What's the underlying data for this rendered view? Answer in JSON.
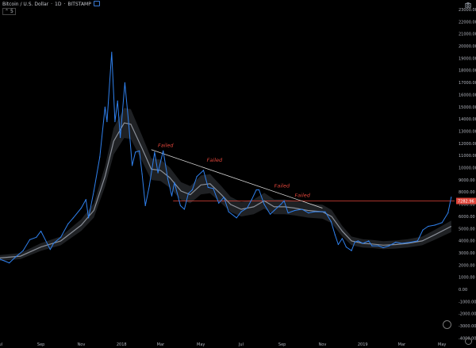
{
  "header": {
    "symbol": "Bitcoin / U.S. Dollar",
    "interval": "1D",
    "exchange": "BITSTAMP",
    "toggle_label": "5"
  },
  "price_marker": {
    "label": "7282.96",
    "value": 7282.96
  },
  "annotations": [
    {
      "text": "Failed",
      "x": "2018-02-25",
      "y": 11700
    },
    {
      "text": "Failed",
      "x": "2018-05-10",
      "y": 10500
    },
    {
      "text": "Failed",
      "x": "2018-08-20",
      "y": 8400
    },
    {
      "text": "Failed",
      "x": "2018-09-20",
      "y": 7600
    }
  ],
  "colors": {
    "price": "#2f80ed",
    "ma": "#8a8f98",
    "band": "#5a5e66",
    "trendline": "#d8d8d8",
    "hline": "#e0453a",
    "annotation": "#e0453a",
    "marker_bg": "#e0453a",
    "axis_text": "#b2b5be"
  },
  "chart_data": {
    "type": "line",
    "x_axis_type": "date",
    "xlim": [
      "2017-07-01",
      "2019-05-20"
    ],
    "ylim": [
      -4800,
      23800
    ],
    "x_ticks": [
      {
        "label": "Jul",
        "date": "2017-07-01"
      },
      {
        "label": "Sep",
        "date": "2017-09-01"
      },
      {
        "label": "Nov",
        "date": "2017-11-01"
      },
      {
        "label": "2018",
        "date": "2018-01-01"
      },
      {
        "label": "Mar",
        "date": "2018-03-01"
      },
      {
        "label": "May",
        "date": "2018-05-01"
      },
      {
        "label": "Jul",
        "date": "2018-07-01"
      },
      {
        "label": "Sep",
        "date": "2018-09-01"
      },
      {
        "label": "Nov",
        "date": "2018-11-01"
      },
      {
        "label": "2019",
        "date": "2019-01-01"
      },
      {
        "label": "Mar",
        "date": "2019-03-01"
      },
      {
        "label": "May",
        "date": "2019-05-01"
      }
    ],
    "y_ticks": [
      23000,
      22000,
      21000,
      20000,
      19000,
      18000,
      17000,
      16000,
      15000,
      14000,
      13000,
      12000,
      11000,
      10000,
      9000,
      8000,
      7000,
      6000,
      5000,
      4000,
      3000,
      2000,
      1000,
      0,
      -1000,
      -2000,
      -3000,
      -4000
    ],
    "y_tick_labels": [
      "23000.00",
      "22000.00",
      "21000.00",
      "20000.00",
      "19000.00",
      "18000.00",
      "17000.00",
      "16000.00",
      "15000.00",
      "14000.00",
      "13000.00",
      "12000.00",
      "11000.00",
      "10000.00",
      "9000.00",
      "8000.00",
      "7000.00",
      "6000.00",
      "5000.00",
      "4000.00",
      "3000.00",
      "2000.00",
      "1000.00",
      "0.00",
      "-1000.00",
      "-2000.00",
      "-3000.00",
      "-4000.00"
    ],
    "series": [
      {
        "name": "",
        "role": "price",
        "points": [
          [
            "2017-07-01",
            2500
          ],
          [
            "2017-07-15",
            2200
          ],
          [
            "2017-07-25",
            2700
          ],
          [
            "2017-08-05",
            3200
          ],
          [
            "2017-08-15",
            4100
          ],
          [
            "2017-08-25",
            4300
          ],
          [
            "2017-09-01",
            4800
          ],
          [
            "2017-09-15",
            3300
          ],
          [
            "2017-09-20",
            3800
          ],
          [
            "2017-10-01",
            4300
          ],
          [
            "2017-10-12",
            5400
          ],
          [
            "2017-10-20",
            5900
          ],
          [
            "2017-11-01",
            6700
          ],
          [
            "2017-11-08",
            7400
          ],
          [
            "2017-11-12",
            5900
          ],
          [
            "2017-11-20",
            8100
          ],
          [
            "2017-11-29",
            10900
          ],
          [
            "2017-12-07",
            15000
          ],
          [
            "2017-12-10",
            13800
          ],
          [
            "2017-12-17",
            19500
          ],
          [
            "2017-12-22",
            13800
          ],
          [
            "2017-12-26",
            15500
          ],
          [
            "2017-12-30",
            12500
          ],
          [
            "2018-01-06",
            17000
          ],
          [
            "2018-01-12",
            13500
          ],
          [
            "2018-01-17",
            10200
          ],
          [
            "2018-01-22",
            11300
          ],
          [
            "2018-01-28",
            11400
          ],
          [
            "2018-02-01",
            9500
          ],
          [
            "2018-02-06",
            6900
          ],
          [
            "2018-02-12",
            8500
          ],
          [
            "2018-02-20",
            11300
          ],
          [
            "2018-02-25",
            9600
          ],
          [
            "2018-03-05",
            11400
          ],
          [
            "2018-03-12",
            9100
          ],
          [
            "2018-03-18",
            7700
          ],
          [
            "2018-03-22",
            8800
          ],
          [
            "2018-03-31",
            6900
          ],
          [
            "2018-04-06",
            6600
          ],
          [
            "2018-04-12",
            7900
          ],
          [
            "2018-04-18",
            8200
          ],
          [
            "2018-04-25",
            9300
          ],
          [
            "2018-05-05",
            9800
          ],
          [
            "2018-05-12",
            8400
          ],
          [
            "2018-05-20",
            8300
          ],
          [
            "2018-05-28",
            7100
          ],
          [
            "2018-06-05",
            7600
          ],
          [
            "2018-06-12",
            6400
          ],
          [
            "2018-06-24",
            5900
          ],
          [
            "2018-07-01",
            6400
          ],
          [
            "2018-07-10",
            6700
          ],
          [
            "2018-07-17",
            7400
          ],
          [
            "2018-07-24",
            8200
          ],
          [
            "2018-07-28",
            8200
          ],
          [
            "2018-08-05",
            7000
          ],
          [
            "2018-08-14",
            6200
          ],
          [
            "2018-08-20",
            6500
          ],
          [
            "2018-08-30",
            7000
          ],
          [
            "2018-09-04",
            7300
          ],
          [
            "2018-09-10",
            6300
          ],
          [
            "2018-09-20",
            6500
          ],
          [
            "2018-10-01",
            6600
          ],
          [
            "2018-10-11",
            6300
          ],
          [
            "2018-10-20",
            6400
          ],
          [
            "2018-11-05",
            6400
          ],
          [
            "2018-11-14",
            5600
          ],
          [
            "2018-11-20",
            4500
          ],
          [
            "2018-11-25",
            3700
          ],
          [
            "2018-12-01",
            4200
          ],
          [
            "2018-12-07",
            3500
          ],
          [
            "2018-12-15",
            3200
          ],
          [
            "2018-12-20",
            3900
          ],
          [
            "2018-12-25",
            4000
          ],
          [
            "2019-01-01",
            3800
          ],
          [
            "2019-01-10",
            4000
          ],
          [
            "2019-01-15",
            3600
          ],
          [
            "2019-01-25",
            3600
          ],
          [
            "2019-02-01",
            3450
          ],
          [
            "2019-02-10",
            3600
          ],
          [
            "2019-02-20",
            3900
          ],
          [
            "2019-03-01",
            3800
          ],
          [
            "2019-03-15",
            3900
          ],
          [
            "2019-03-25",
            4000
          ],
          [
            "2019-04-02",
            4900
          ],
          [
            "2019-04-10",
            5200
          ],
          [
            "2019-04-20",
            5300
          ],
          [
            "2019-05-01",
            5500
          ],
          [
            "2019-05-10",
            6300
          ],
          [
            "2019-05-15",
            7600
          ]
        ]
      },
      {
        "name": "",
        "role": "moving-average",
        "points": [
          [
            "2017-07-01",
            2600
          ],
          [
            "2017-08-01",
            2750
          ],
          [
            "2017-09-01",
            3500
          ],
          [
            "2017-10-01",
            4000
          ],
          [
            "2017-11-01",
            5300
          ],
          [
            "2017-11-20",
            6500
          ],
          [
            "2017-12-07",
            9300
          ],
          [
            "2017-12-20",
            12200
          ],
          [
            "2018-01-05",
            13700
          ],
          [
            "2018-01-15",
            13600
          ],
          [
            "2018-02-01",
            11600
          ],
          [
            "2018-02-15",
            9900
          ],
          [
            "2018-03-01",
            9800
          ],
          [
            "2018-03-15",
            9200
          ],
          [
            "2018-04-01",
            8100
          ],
          [
            "2018-04-15",
            7800
          ],
          [
            "2018-05-01",
            8600
          ],
          [
            "2018-05-15",
            8700
          ],
          [
            "2018-06-01",
            7800
          ],
          [
            "2018-06-15",
            7000
          ],
          [
            "2018-07-01",
            6600
          ],
          [
            "2018-07-20",
            6800
          ],
          [
            "2018-08-05",
            7300
          ],
          [
            "2018-08-20",
            6800
          ],
          [
            "2018-09-05",
            6800
          ],
          [
            "2018-09-20",
            6700
          ],
          [
            "2018-10-10",
            6500
          ],
          [
            "2018-11-01",
            6400
          ],
          [
            "2018-11-15",
            6000
          ],
          [
            "2018-12-01",
            4800
          ],
          [
            "2018-12-15",
            4000
          ],
          [
            "2019-01-01",
            3800
          ],
          [
            "2019-01-15",
            3750
          ],
          [
            "2019-02-01",
            3650
          ],
          [
            "2019-02-20",
            3700
          ],
          [
            "2019-03-10",
            3800
          ],
          [
            "2019-04-01",
            4000
          ],
          [
            "2019-04-20",
            4500
          ],
          [
            "2019-05-15",
            5200
          ]
        ]
      }
    ],
    "trendline": [
      [
        "2018-02-15",
        11500
      ],
      [
        "2018-11-01",
        6700
      ]
    ],
    "horizontal_line": 7282.96,
    "grid": false,
    "title": "",
    "xlabel": "",
    "ylabel": ""
  }
}
